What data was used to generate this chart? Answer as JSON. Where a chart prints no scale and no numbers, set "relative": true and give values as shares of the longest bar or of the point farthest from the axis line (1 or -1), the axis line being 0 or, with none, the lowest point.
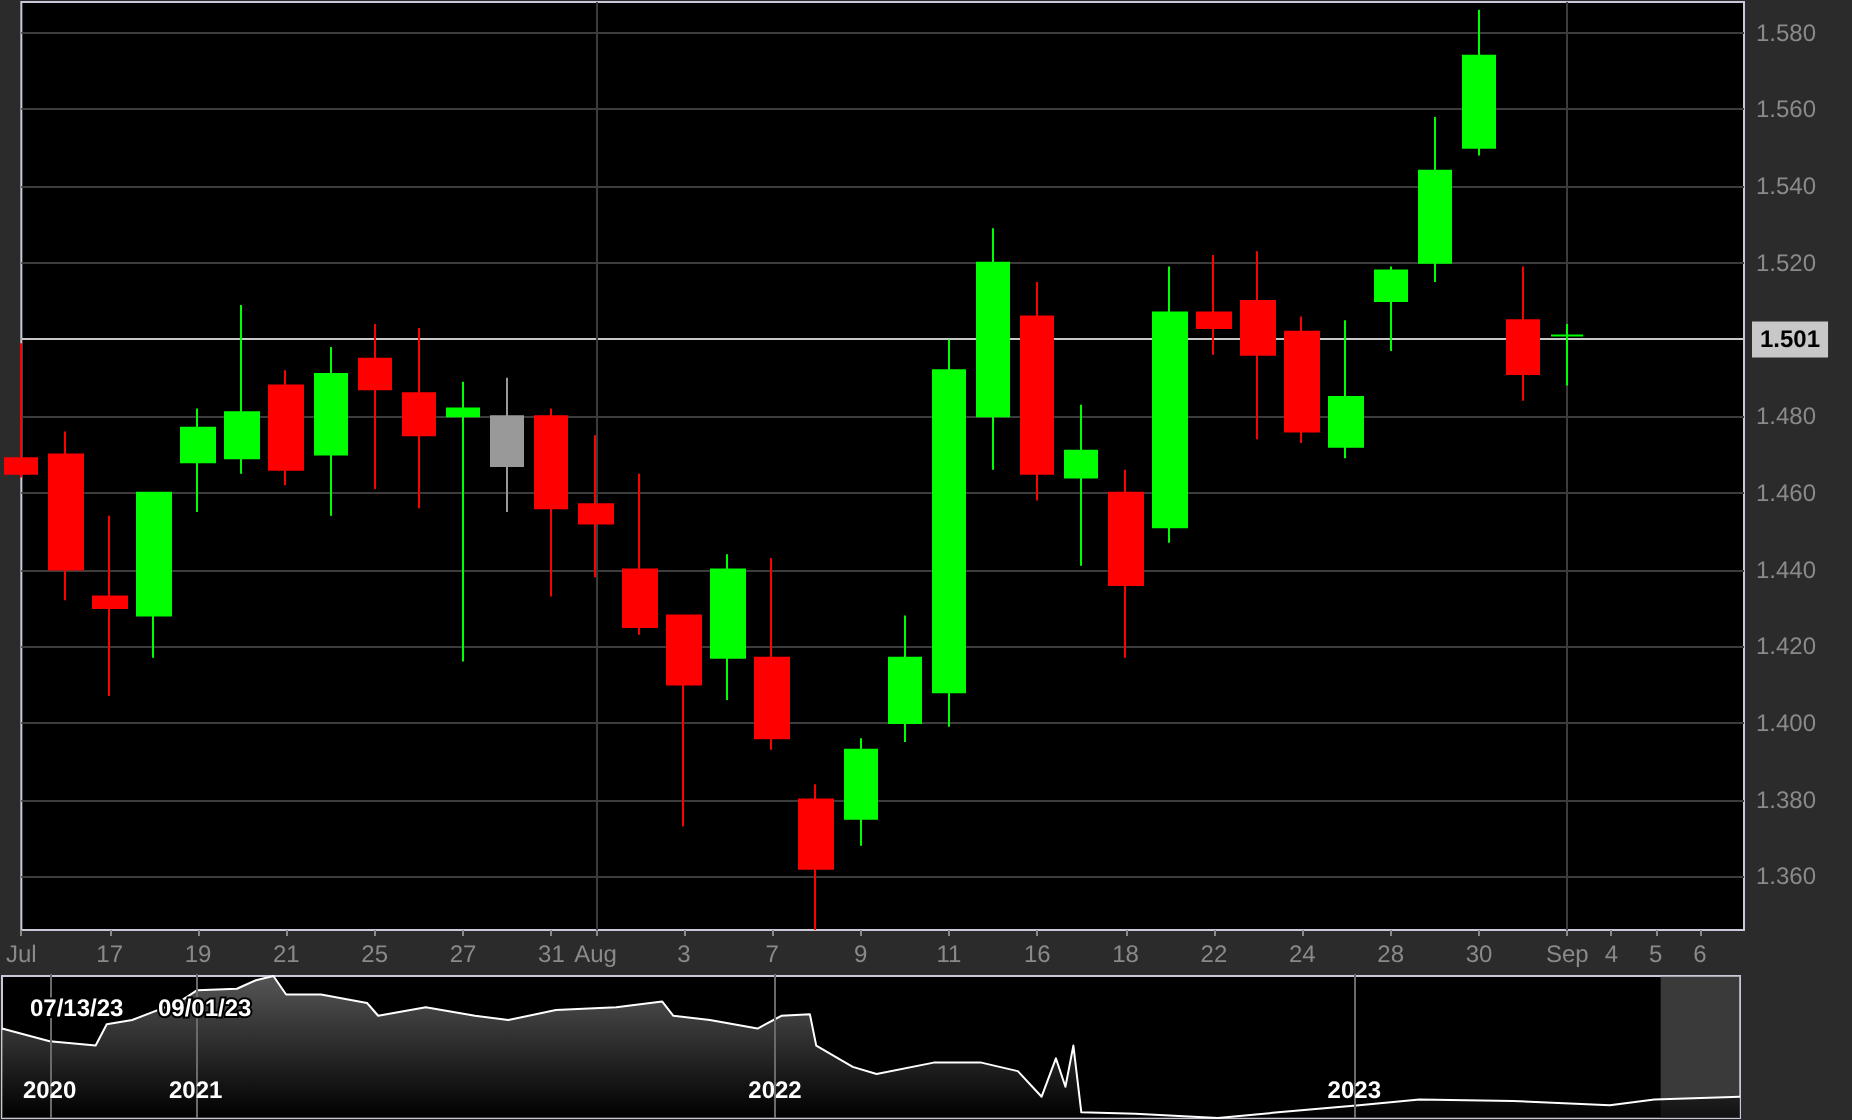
{
  "chart_data": [
    {
      "type": "candlestick",
      "categories": [
        "Jul",
        null,
        "17",
        null,
        "19",
        null,
        "21",
        null,
        "25",
        null,
        "27",
        null,
        "31",
        "Aug",
        null,
        "3",
        null,
        "7",
        null,
        "9",
        null,
        "11",
        null,
        "16",
        null,
        "18",
        null,
        "22",
        null,
        "24",
        null,
        "28",
        null,
        "30",
        null,
        "Sep",
        "4",
        "5",
        "6",
        null
      ],
      "ohlc": [
        [
          1.469,
          1.499,
          1.464,
          1.465
        ],
        [
          1.47,
          1.476,
          1.432,
          1.44
        ],
        [
          1.433,
          1.454,
          1.407,
          1.43
        ],
        [
          1.428,
          1.46,
          1.417,
          1.46
        ],
        [
          1.468,
          1.482,
          1.455,
          1.477
        ],
        [
          1.469,
          1.509,
          1.465,
          1.481
        ],
        [
          1.488,
          1.492,
          1.462,
          1.466
        ],
        [
          1.47,
          1.498,
          1.454,
          1.491
        ],
        [
          1.495,
          1.504,
          1.461,
          1.487
        ],
        [
          1.486,
          1.503,
          1.456,
          1.475
        ],
        [
          1.48,
          1.489,
          1.416,
          1.482
        ],
        [
          1.48,
          1.49,
          1.455,
          1.467
        ],
        [
          1.48,
          1.482,
          1.433,
          1.456
        ],
        [
          1.457,
          1.475,
          1.438,
          1.452
        ],
        [
          1.44,
          1.465,
          1.423,
          1.425
        ],
        [
          1.428,
          1.428,
          1.373,
          1.41
        ],
        [
          1.417,
          1.444,
          1.406,
          1.44
        ],
        [
          1.417,
          1.443,
          1.393,
          1.396
        ],
        [
          1.38,
          1.384,
          1.346,
          1.362
        ],
        [
          1.375,
          1.396,
          1.368,
          1.393
        ],
        [
          1.4,
          1.428,
          1.395,
          1.417
        ],
        [
          1.408,
          1.5,
          1.399,
          1.492
        ],
        [
          1.48,
          1.529,
          1.466,
          1.52
        ],
        [
          1.506,
          1.515,
          1.458,
          1.465
        ],
        [
          1.464,
          1.483,
          1.441,
          1.471
        ],
        [
          1.46,
          1.466,
          1.417,
          1.436
        ],
        [
          1.451,
          1.519,
          1.447,
          1.507
        ],
        [
          1.507,
          1.522,
          1.496,
          1.503
        ],
        [
          1.51,
          1.523,
          1.474,
          1.496
        ],
        [
          1.502,
          1.506,
          1.473,
          1.476
        ],
        [
          1.472,
          1.505,
          1.469,
          1.485
        ],
        [
          1.51,
          1.519,
          1.497,
          1.518
        ],
        [
          1.52,
          1.558,
          1.515,
          1.544
        ],
        [
          1.55,
          1.586,
          1.548,
          1.574
        ],
        [
          1.505,
          1.519,
          1.484,
          1.491
        ],
        [
          1.501,
          1.504,
          1.488,
          1.501
        ],
        null,
        null,
        null,
        null
      ],
      "colors": [
        "#ff0000",
        "#ff0000",
        "#ff0000",
        "#00ff00",
        "#00ff00",
        "#00ff00",
        "#ff0000",
        "#00ff00",
        "#ff0000",
        "#ff0000",
        "#00ff00",
        "#999999",
        "#ff0000",
        "#ff0000",
        "#ff0000",
        "#ff0000",
        "#00ff00",
        "#ff0000",
        "#ff0000",
        "#00ff00",
        "#00ff00",
        "#00ff00",
        "#00ff00",
        "#ff0000",
        "#00ff00",
        "#ff0000",
        "#00ff00",
        "#ff0000",
        "#ff0000",
        "#ff0000",
        "#00ff00",
        "#00ff00",
        "#00ff00",
        "#00ff00",
        "#ff0000",
        "#00ff00",
        null,
        null,
        null,
        null
      ],
      "ylim": [
        1.346,
        1.588
      ],
      "yticks": [
        {
          "value": 1.36,
          "label": "1.360"
        },
        {
          "value": 1.38,
          "label": "1.380"
        },
        {
          "value": 1.4,
          "label": "1.400"
        },
        {
          "value": 1.42,
          "label": "1.420"
        },
        {
          "value": 1.44,
          "label": "1.440"
        },
        {
          "value": 1.46,
          "label": "1.460"
        },
        {
          "value": 1.48,
          "label": "1.480"
        },
        {
          "value": 1.5,
          "label": null
        },
        {
          "value": 1.52,
          "label": "1.520"
        },
        {
          "value": 1.54,
          "label": "1.540"
        },
        {
          "value": 1.56,
          "label": "1.560"
        },
        {
          "value": 1.58,
          "label": "1.580"
        }
      ],
      "grid": "y",
      "ref_lines": [
        {
          "axis": "y",
          "value": 1.501,
          "label": "1.501",
          "color": "#c8c8c8"
        },
        {
          "axis": "x",
          "value": "Aug",
          "color": "#3c3c3c"
        },
        {
          "axis": "x",
          "value": "Sep",
          "color": "#3c3c3c"
        }
      ]
    },
    {
      "type": "area",
      "relative": true,
      "color": "#ffffff",
      "x": [
        "2020-09-01",
        "2020-10-01",
        "2020-10-30",
        "2020-11-06",
        "2020-11-22",
        "2020-12-22",
        "2021-01-02",
        "2021-01-27",
        "2021-02-08",
        "2021-02-19",
        "2021-02-27",
        "2021-03-21",
        "2021-04-19",
        "2021-04-26",
        "2021-05-26",
        "2021-06-26",
        "2021-07-17",
        "2021-08-16",
        "2021-09-23",
        "2021-10-22",
        "2021-10-29",
        "2021-11-21",
        "2021-12-21",
        "2022-01-05",
        "2022-01-23",
        "2022-01-27",
        "2022-02-19",
        "2022-03-06",
        "2022-04-11",
        "2022-05-11",
        "2022-06-03",
        "2022-06-18",
        "2022-06-27",
        "2022-07-03",
        "2022-07-08",
        "2022-07-13",
        "2022-08-16",
        "2022-10-07",
        "2022-11-14",
        "2023-01-04",
        "2023-02-11",
        "2023-04-11",
        "2023-06-11",
        "2023-07-09",
        "2023-09-01"
      ],
      "values": [
        0.63,
        0.54,
        0.51,
        0.66,
        0.69,
        0.82,
        0.9,
        0.91,
        0.97,
        1.0,
        0.87,
        0.87,
        0.81,
        0.72,
        0.78,
        0.72,
        0.69,
        0.76,
        0.78,
        0.82,
        0.72,
        0.69,
        0.63,
        0.72,
        0.73,
        0.51,
        0.36,
        0.31,
        0.39,
        0.39,
        0.33,
        0.15,
        0.42,
        0.22,
        0.51,
        0.04,
        0.03,
        0,
        0.04,
        0.09,
        0.13,
        0.12,
        0.09,
        0.13,
        0.15
      ],
      "xlim": [
        "2020-09-01",
        "2023-09-01"
      ],
      "xticks": [
        {
          "value": "2020-10-01",
          "label": "2020"
        },
        {
          "value": "2021-01-01",
          "label": "2021"
        },
        {
          "value": "2022-01-01",
          "label": "2022"
        },
        {
          "value": "2023-01-01",
          "label": "2023"
        }
      ],
      "grid": "x",
      "bands": [
        {
          "axis": "x",
          "from": "2023-07-13",
          "to": "2023-09-01",
          "color": "#808080"
        }
      ],
      "annotations": [
        "07/13/23",
        "09/01/23"
      ]
    }
  ]
}
